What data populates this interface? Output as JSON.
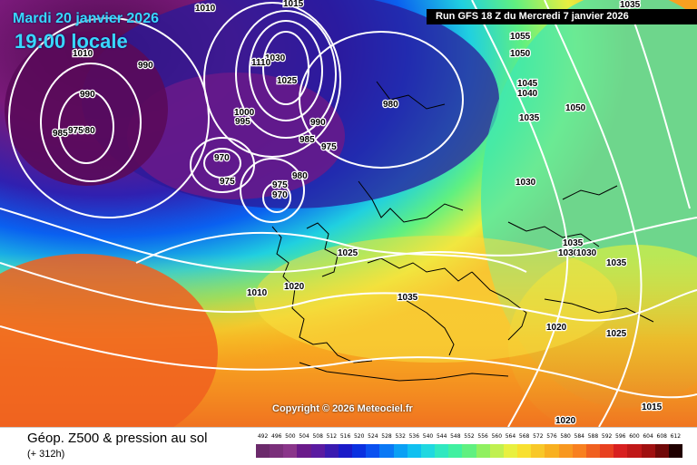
{
  "header": {
    "date": "Mardi 20 janvier 2026",
    "time": "19:00 locale",
    "run": "Run GFS 18 Z du Mercredi 7 janvier 2026"
  },
  "copyright": "Copyright © 2026 Meteociel.fr",
  "footer": {
    "title": "Géop. Z500 & pression au sol",
    "subtitle": "(+ 312h)"
  },
  "legend": {
    "values": [
      "492",
      "496",
      "500",
      "504",
      "508",
      "512",
      "516",
      "520",
      "524",
      "528",
      "532",
      "536",
      "540",
      "544",
      "548",
      "552",
      "556",
      "560",
      "564",
      "568",
      "572",
      "576",
      "580",
      "584",
      "588",
      "592",
      "596",
      "600",
      "604",
      "608",
      "612"
    ],
    "colors": [
      "#6b2a6b",
      "#7a2f7a",
      "#8a358a",
      "#6a1a8a",
      "#5a1aa0",
      "#3a1ab0",
      "#1a1ac8",
      "#0a30e0",
      "#0a50f0",
      "#0a78f5",
      "#0aa0f5",
      "#10c0f0",
      "#20d8e0",
      "#30e8c0",
      "#40f0a0",
      "#60f080",
      "#90f060",
      "#c0f050",
      "#e8f040",
      "#f8e030",
      "#f8c828",
      "#f8b020",
      "#f89820",
      "#f88020",
      "#f06020",
      "#e84020",
      "#d82020",
      "#c01818",
      "#a01010",
      "#700808",
      "#200000"
    ]
  },
  "pressure_labels": [
    {
      "text": "1010"
    },
    {
      "text": "1010"
    },
    {
      "text": "990"
    },
    {
      "text": "990"
    },
    {
      "text": "985"
    },
    {
      "text": "980"
    },
    {
      "text": "975"
    },
    {
      "text": "1015"
    },
    {
      "text": "1030"
    },
    {
      "text": "1025"
    },
    {
      "text": "1000"
    },
    {
      "text": "995"
    },
    {
      "text": "990"
    },
    {
      "text": "985"
    },
    {
      "text": "975"
    },
    {
      "text": "970"
    },
    {
      "text": "975"
    },
    {
      "text": "975"
    },
    {
      "text": "970"
    },
    {
      "text": "980"
    },
    {
      "text": "980"
    },
    {
      "text": "1055"
    },
    {
      "text": "1050"
    },
    {
      "text": "1045"
    },
    {
      "text": "1040"
    },
    {
      "text": "1050"
    },
    {
      "text": "1035"
    },
    {
      "text": "1030"
    },
    {
      "text": "1035"
    },
    {
      "text": "1030"
    },
    {
      "text": "1030"
    },
    {
      "text": "1035"
    },
    {
      "text": "1025"
    },
    {
      "text": "1020"
    },
    {
      "text": "1010"
    },
    {
      "text": "1020"
    },
    {
      "text": "1035"
    },
    {
      "text": "1025"
    },
    {
      "text": "1020"
    },
    {
      "text": "1015"
    },
    {
      "text": "1035"
    },
    {
      "text": "1110"
    }
  ]
}
